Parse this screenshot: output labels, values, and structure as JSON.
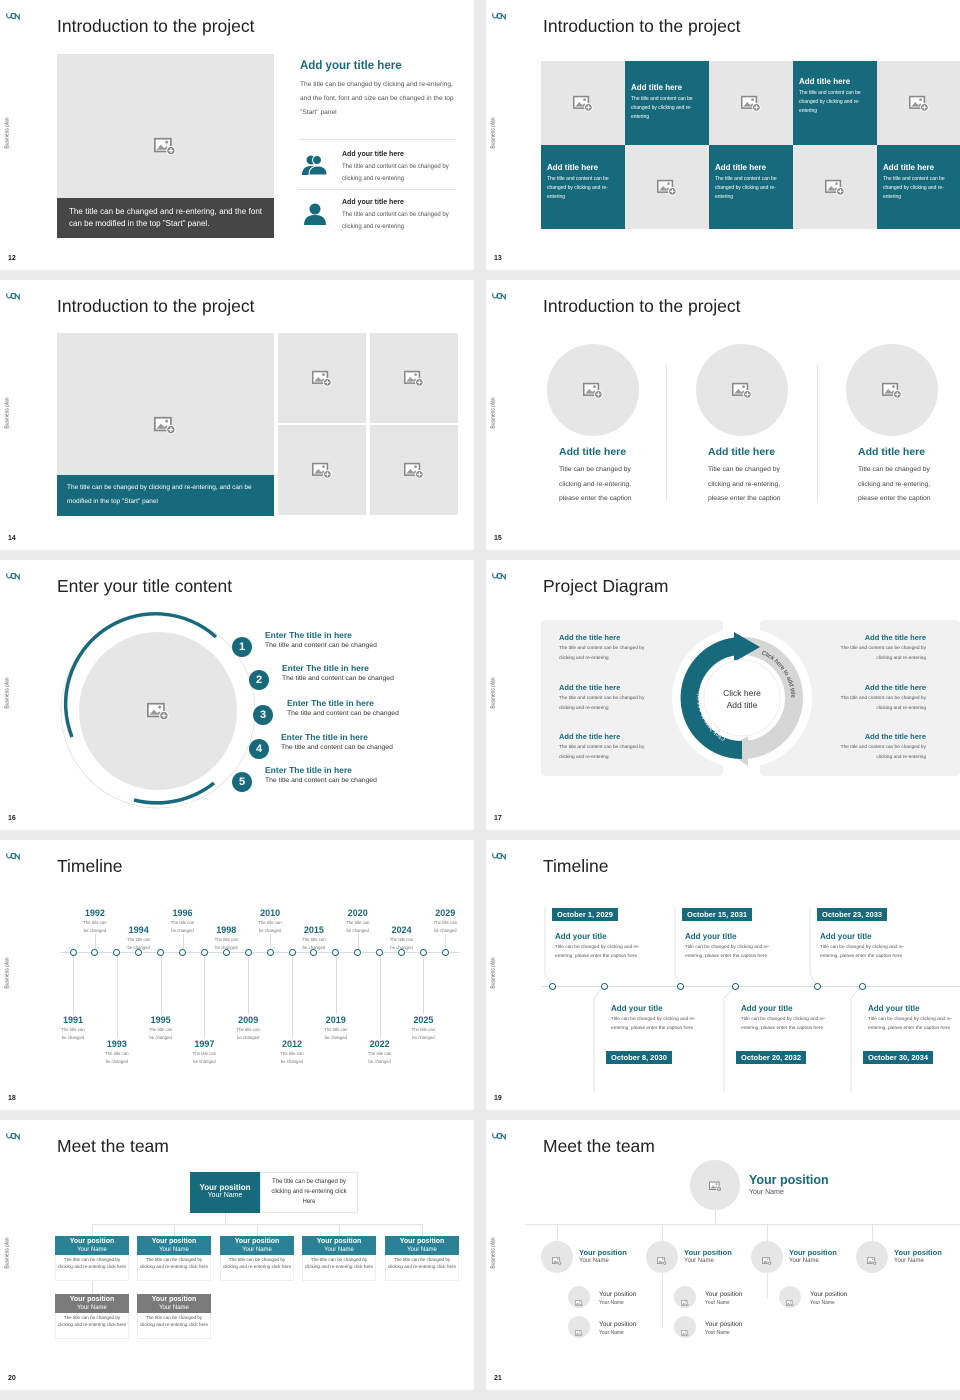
{
  "deck": {
    "side_label": "Business plan"
  },
  "colors": {
    "accent": "#17697c",
    "placeholder": "#e6e6e6",
    "dark_caption": "#464646",
    "panel": "#f1f1f1",
    "muted_header": "#7a7a7a",
    "background": "#ebebeb"
  },
  "s12": {
    "page": "12",
    "title": "Introduction to the project",
    "caption": "The title can be changed and re-entering, and the font can be modified in the top \"Start\" panel.",
    "heading": "Add your title here",
    "body": "The title can be changed by clicking and re-entering, and the font, font and size can be changed in the top \"Start\" panel",
    "items": [
      {
        "icon": "group-icon",
        "title": "Add your title here",
        "text": "The title and content can be changed by clicking and re-entering"
      },
      {
        "icon": "user-icon",
        "title": "Add your title here",
        "text": "The title and content can be changed by clicking and re-entering"
      }
    ]
  },
  "s13": {
    "page": "13",
    "title": "Introduction to the project",
    "tiles": [
      {
        "title": "Add title here",
        "text": "The title and content can be changed by clicking and re-entering"
      },
      {
        "title": "Add title here",
        "text": "The title and content can be changed by clicking and re-entering"
      },
      {
        "title": "Add title here",
        "text": "The title and content can be changed by clicking and re-entering"
      },
      {
        "title": "Add title here",
        "text": "The title and content can be changed by clicking and re-entering"
      },
      {
        "title": "Add title here",
        "text": "The title and content can be changed by clicking and re-entering"
      }
    ]
  },
  "s14": {
    "page": "14",
    "title": "Introduction to the project",
    "caption": "The title can be changed by clicking and re-entering, and can be modified in the top \"Start\" panel"
  },
  "s15": {
    "page": "15",
    "title": "Introduction to the project",
    "cols": [
      {
        "title": "Add title here",
        "text": "Title can be changed by clicking and re-entering, please enter the caption"
      },
      {
        "title": "Add title here",
        "text": "Title can be changed by clicking and re-entering, please enter the caption"
      },
      {
        "title": "Add title here",
        "text": "Title can be changed by clicking and re-entering, please enter the caption"
      }
    ]
  },
  "s16": {
    "page": "16",
    "title": "Enter your title content",
    "items": [
      {
        "num": "1",
        "title": "Enter The title in here",
        "text": "The title and content can be changed"
      },
      {
        "num": "2",
        "title": "Enter The title in here",
        "text": "The title and content can be changed"
      },
      {
        "num": "3",
        "title": "Enter The title in here",
        "text": "The title and content can be changed"
      },
      {
        "num": "4",
        "title": "Enter The title in here",
        "text": "The title and content can be changed"
      },
      {
        "num": "5",
        "title": "Enter The title in here",
        "text": "The title and content can be changed"
      }
    ]
  },
  "s17": {
    "page": "17",
    "title": "Project Diagram",
    "center_line1": "Click here",
    "center_line2": "Add title",
    "arc_left": "Click here to add title",
    "arc_right": "Click here to add title",
    "left_items": [
      {
        "title": "Add the title here",
        "text": "The title and content can be changed by clicking and re-entering"
      },
      {
        "title": "Add the title here",
        "text": "The title and content can be changed by clicking and re-entering"
      },
      {
        "title": "Add the title here",
        "text": "The title and content can be changed by clicking and re-entering"
      }
    ],
    "right_items": [
      {
        "title": "Add the title here",
        "text": "The title and content can be changed by clicking and re-entering"
      },
      {
        "title": "Add the title here",
        "text": "The title and content can be changed by clicking and re-entering"
      },
      {
        "title": "Add the title here",
        "text": "The title and content can be changed by clicking and re-entering"
      }
    ]
  },
  "s18": {
    "page": "18",
    "title": "Timeline",
    "events": [
      {
        "year": "1991",
        "text": "The title can be changed"
      },
      {
        "year": "1992",
        "text": "The title can be changed"
      },
      {
        "year": "1993",
        "text": "The title can be changed"
      },
      {
        "year": "1994",
        "text": "The title can be changed"
      },
      {
        "year": "1995",
        "text": "The title can be changed"
      },
      {
        "year": "1996",
        "text": "The title can be changed"
      },
      {
        "year": "1997",
        "text": "The title can be changed"
      },
      {
        "year": "1998",
        "text": "The title can be changed"
      },
      {
        "year": "2009",
        "text": "The title can be changed"
      },
      {
        "year": "2010",
        "text": "The title can be changed"
      },
      {
        "year": "2012",
        "text": "The title can be changed"
      },
      {
        "year": "2015",
        "text": "The title can be changed"
      },
      {
        "year": "2019",
        "text": "The title can be changed"
      },
      {
        "year": "2020",
        "text": "The title can be changed"
      },
      {
        "year": "2022",
        "text": "The title can be changed"
      },
      {
        "year": "2024",
        "text": "The title can be changed"
      },
      {
        "year": "2025",
        "text": "The title can be changed"
      },
      {
        "year": "2029",
        "text": "The title can be changed"
      }
    ]
  },
  "s19": {
    "page": "19",
    "title": "Timeline",
    "events": [
      {
        "date": "October 1, 2029",
        "title": "Add your title",
        "text": "Title can be changed by clicking and re-entering, please enter the caption here"
      },
      {
        "date": "October 8, 2030",
        "title": "Add your title",
        "text": "Title can be changed by clicking and re-entering, please enter the caption here"
      },
      {
        "date": "October 15, 2031",
        "title": "Add your title",
        "text": "Title can be changed by clicking and re-entering, please enter the caption here"
      },
      {
        "date": "October 20, 2032",
        "title": "Add your title",
        "text": "Title can be changed by clicking and re-entering, please enter the caption here"
      },
      {
        "date": "October 23, 2033",
        "title": "Add your title",
        "text": "Title can be changed by clicking and re-entering, please enter the caption here"
      },
      {
        "date": "October 30, 2034",
        "title": "Add your title",
        "text": "Title can be changed by clicking and re-entering, please enter the caption here"
      }
    ]
  },
  "s20": {
    "page": "20",
    "title": "Meet the team",
    "lead": {
      "position": "Your position",
      "name": "Your Name",
      "text": "The title can be changed by clicking and re-entering click Here"
    },
    "members": [
      {
        "position": "Your position",
        "name": "Your Name",
        "text": "The title can be changed by clicking and re-entering click here"
      },
      {
        "position": "Your position",
        "name": "Your Name",
        "text": "The title can be changed by clicking and re-entering click here"
      },
      {
        "position": "Your position",
        "name": "Your Name",
        "text": "The title can be changed by clicking and re-entering click here"
      },
      {
        "position": "Your position",
        "name": "Your Name",
        "text": "The title can be changed by clicking and re-entering click here"
      },
      {
        "position": "Your position",
        "name": "Your Name",
        "text": "The title can be changed by clicking and re-entering click here"
      },
      {
        "position": "Your position",
        "name": "Your Name",
        "text": "The title can be changed by clicking and re-entering click here"
      },
      {
        "position": "Your position",
        "name": "Your Name",
        "text": "The title can be changed by clicking and re-entering click here"
      }
    ]
  },
  "s21": {
    "page": "21",
    "title": "Meet the team",
    "lead": {
      "position": "Your position",
      "name": "Your Name"
    },
    "members": [
      {
        "position": "Your position",
        "name": "Your Name"
      },
      {
        "position": "Your position",
        "name": "Your Name"
      },
      {
        "position": "Your position",
        "name": "Your Name"
      },
      {
        "position": "Your position",
        "name": "Your Name"
      }
    ],
    "sub_members": [
      {
        "position": "Your position",
        "name": "Your Name"
      },
      {
        "position": "Your position",
        "name": "Your Name"
      },
      {
        "position": "Your position",
        "name": "Your Name"
      },
      {
        "position": "Your position",
        "name": "Your Name"
      },
      {
        "position": "Your position",
        "name": "Your Name"
      }
    ]
  }
}
